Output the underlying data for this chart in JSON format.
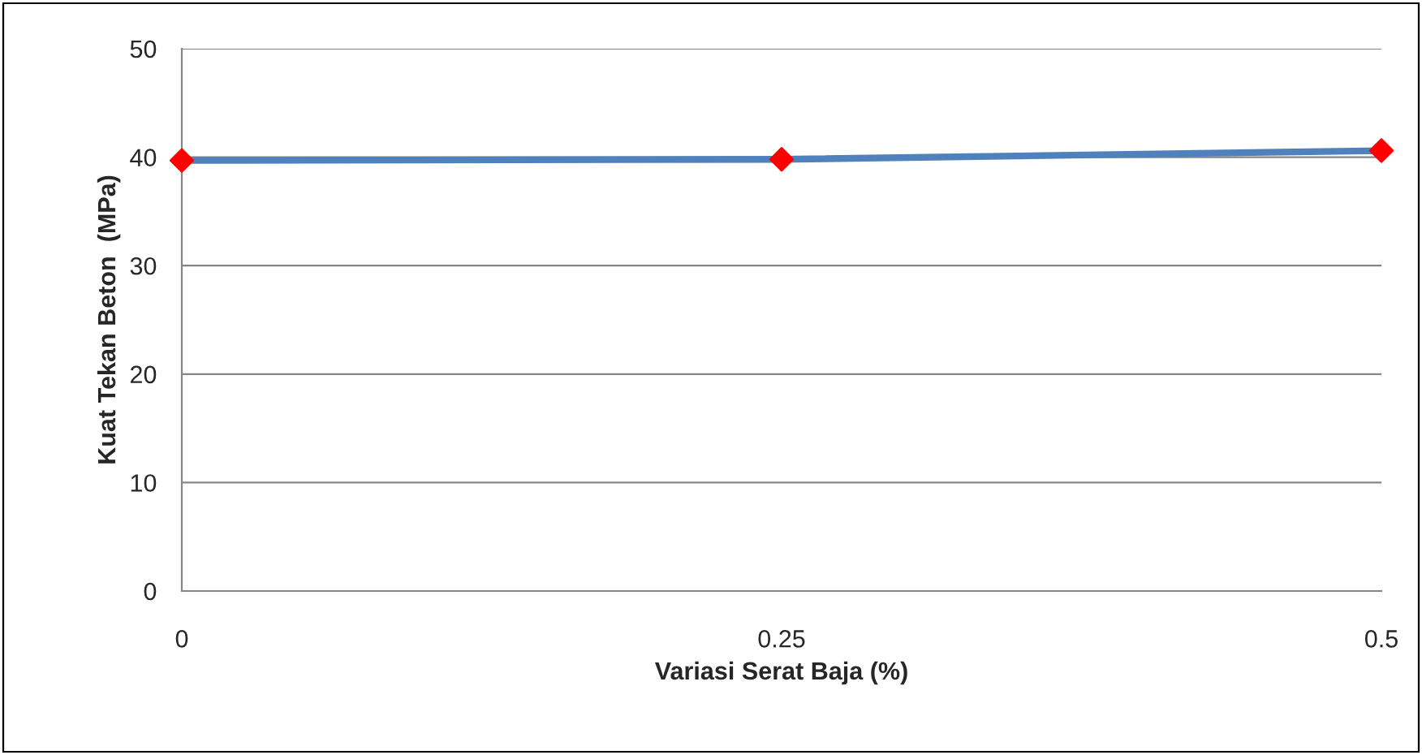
{
  "chart_data": {
    "type": "line",
    "xlabel": "Variasi Serat Baja (%)",
    "ylabel": "Kuat Tekan Beton  (MPa)",
    "x": [
      0,
      0.25,
      0.5
    ],
    "xlim": [
      0,
      0.5
    ],
    "xticks": [
      0,
      0.25,
      0.5
    ],
    "ylim": [
      0,
      50
    ],
    "yticks": [
      0,
      10,
      20,
      30,
      40,
      50
    ],
    "grid": "y",
    "marker": "diamond",
    "line_style": "solid",
    "series": [
      {
        "color": "#4f81bd",
        "colors": [
          "#ff0000",
          "#ff0000",
          "#ff0000"
        ],
        "values": [
          39.7,
          39.8,
          40.6
        ]
      }
    ]
  }
}
